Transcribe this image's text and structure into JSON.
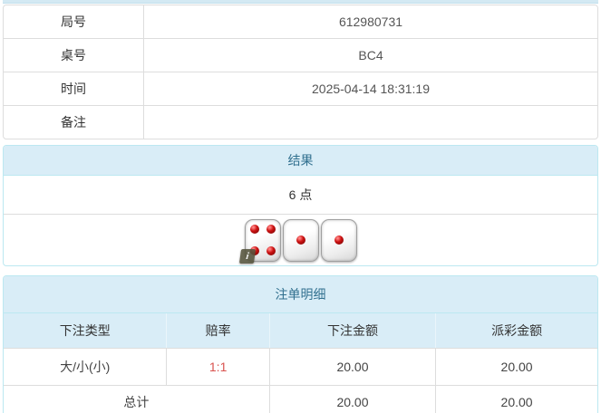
{
  "info_table": {
    "rows": [
      {
        "label": "局号",
        "value": "612980731"
      },
      {
        "label": "桌号",
        "value": "BC4"
      },
      {
        "label": "时间",
        "value": "2025-04-14 18:31:19"
      },
      {
        "label": "备注",
        "value": ""
      }
    ]
  },
  "result_panel": {
    "title": "结果",
    "points": "6 点",
    "dice": [
      4,
      1,
      1
    ]
  },
  "bets_panel": {
    "title": "注单明细",
    "columns": [
      "下注类型",
      "赔率",
      "下注金额",
      "派彩金额"
    ],
    "rows": [
      {
        "type": "大/小(小)",
        "odds": "1:1",
        "bet": "20.00",
        "payout": "20.00"
      }
    ],
    "total": {
      "label": "总计",
      "bet": "20.00",
      "payout": "20.00"
    }
  },
  "icons": {
    "info_badge": "i"
  },
  "colors": {
    "panel_header_bg": "#d9edf7",
    "panel_header_text": "#31708f",
    "panel_border": "#bce8f1",
    "table_border": "#dddddd",
    "odds_red": "#d9534f",
    "body_text": "#444444"
  }
}
